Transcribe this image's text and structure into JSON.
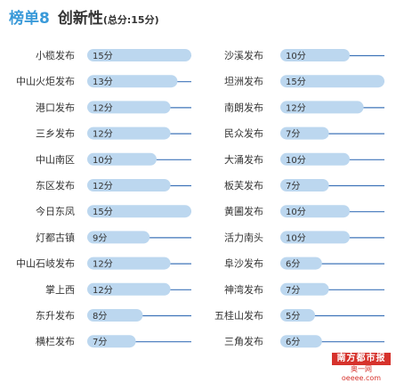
{
  "header": {
    "title": "榜单8",
    "subtitle": "创新性",
    "note": "(总分:15分)"
  },
  "logo": {
    "name": "南方都市报",
    "tagline": "奥一网oeeee.com"
  },
  "colors": {
    "title": "#3a9ad9",
    "pill": "#bcd7ef",
    "line": "#3f74b9",
    "label": "#333333",
    "logo": "#d6322c"
  },
  "chart_data": {
    "type": "bar",
    "unit": "分",
    "xlim": [
      0,
      15
    ],
    "columns": [
      {
        "categories": [
          "小榄发布",
          "中山火炬发布",
          "港口发布",
          "三乡发布",
          "中山南区",
          "东区发布",
          "今日东凤",
          "灯都古镇",
          "中山石岐发布",
          "掌上西",
          "东升发布",
          "横栏发布"
        ],
        "values": [
          15,
          13,
          12,
          12,
          10,
          12,
          15,
          9,
          12,
          12,
          8,
          7
        ],
        "labels": [
          "15分",
          "13分",
          "12分",
          "12分",
          "10分",
          "12分",
          "15分",
          "9分",
          "12分",
          "12分",
          "8分",
          "7分"
        ]
      },
      {
        "categories": [
          "沙溪发布",
          "坦洲发布",
          "南朗发布",
          "民众发布",
          "大涌发布",
          "板芙发布",
          "黄圃发布",
          "活力南头",
          "阜沙发布",
          "神湾发布",
          "五桂山发布",
          "三角发布"
        ],
        "values": [
          10,
          15,
          12,
          7,
          10,
          7,
          10,
          10,
          6,
          7,
          5,
          6
        ],
        "labels": [
          "10分",
          "15分",
          "12分",
          "7分",
          "10分",
          "7分",
          "10分",
          "10分",
          "6分",
          "7分",
          "5分",
          "6分"
        ]
      }
    ]
  }
}
